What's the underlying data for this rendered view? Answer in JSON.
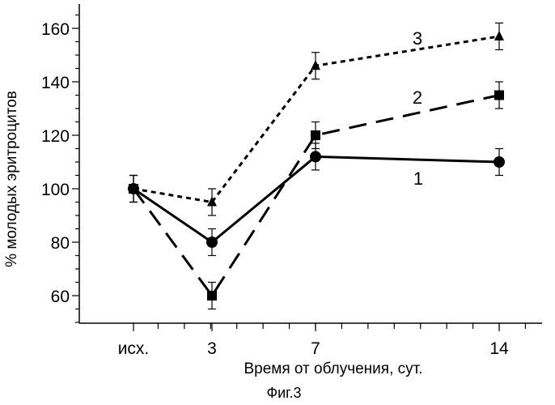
{
  "chart_data": {
    "type": "line",
    "categories": [
      "исх.",
      "3",
      "7",
      "14"
    ],
    "x": [
      0,
      3,
      7,
      14
    ],
    "xlabel": "Время от облучения, сут.",
    "ylabel": "% молодых эритроцитов",
    "ylim": [
      50,
      170
    ],
    "yticks": [
      60,
      80,
      100,
      120,
      140,
      160
    ],
    "grid": false,
    "legend": "none",
    "series": [
      {
        "name": "1",
        "values": [
          100,
          80,
          112,
          110
        ],
        "errors": [
          5,
          5,
          5,
          5
        ],
        "marker": "circle",
        "line": "solid"
      },
      {
        "name": "2",
        "values": [
          100,
          60,
          120,
          135
        ],
        "errors": [
          5,
          5,
          5,
          5
        ],
        "marker": "square",
        "line": "dashed"
      },
      {
        "name": "3",
        "values": [
          100,
          95,
          146,
          157
        ],
        "errors": [
          5,
          5,
          5,
          5
        ],
        "marker": "triangle",
        "line": "dotted"
      }
    ]
  },
  "caption": "Фиг.3"
}
